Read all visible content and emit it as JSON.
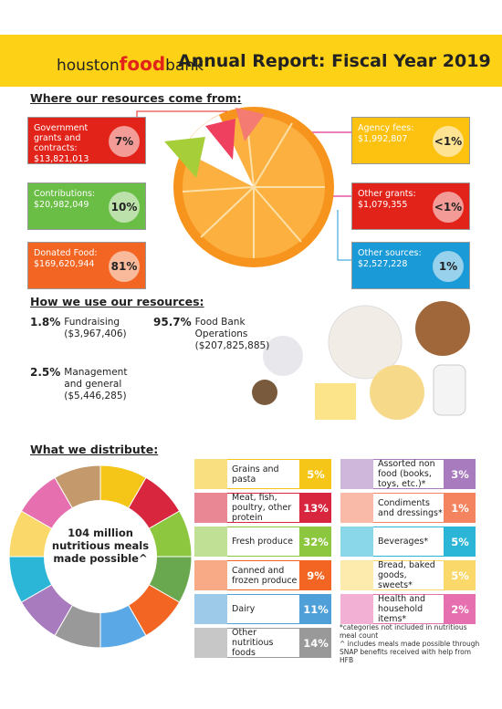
{
  "header": {
    "logo_prefix": "houston",
    "logo_bold": "food",
    "logo_suffix": "bank",
    "title": "Annual Report: Fiscal Year 2019"
  },
  "sources": {
    "heading": "Where our resources come from:",
    "items": [
      {
        "label": "Government grants and contracts:",
        "amount": "$13,821,013",
        "percent": "7%"
      },
      {
        "label": "Contributions:",
        "amount": "$20,982,049",
        "percent": "10%"
      },
      {
        "label": "Donated Food:",
        "amount": "$169,620,944",
        "percent": "81%"
      },
      {
        "label": "Agency fees:",
        "amount": "$1,992,807",
        "percent": "<1%"
      },
      {
        "label": "Other grants:",
        "amount": "$1,079,355",
        "percent": "<1%"
      },
      {
        "label": "Other sources:",
        "amount": "$2,527,228",
        "percent": "1%"
      }
    ]
  },
  "uses": {
    "heading": "How we use our resources:",
    "items": [
      {
        "percent": "1.8%",
        "label": "Fundraising",
        "amount": "($3,967,406)"
      },
      {
        "percent": "95.7%",
        "label": "Food Bank Operations",
        "amount": "($207,825,885)"
      },
      {
        "percent": "2.5%",
        "label": "Management and general",
        "amount": "($5,446,285)"
      }
    ]
  },
  "distribute": {
    "heading": "What we distribute:",
    "center": "104 million nutritious meals made possible^",
    "items": [
      {
        "label": "Grains and pasta",
        "percent": "5%"
      },
      {
        "label": "Meat, fish, poultry, other protein",
        "percent": "13%"
      },
      {
        "label": "Fresh produce",
        "percent": "32%"
      },
      {
        "label": "Canned and frozen produce",
        "percent": "9%"
      },
      {
        "label": "Dairy",
        "percent": "11%"
      },
      {
        "label": "Other nutritious foods",
        "percent": "14%"
      },
      {
        "label": "Assorted non food (books, toys, etc.)*",
        "percent": "3%"
      },
      {
        "label": "Condiments and dressings*",
        "percent": "1%"
      },
      {
        "label": "Beverages*",
        "percent": "5%"
      },
      {
        "label": "Bread, baked goods, sweets*",
        "percent": "5%"
      },
      {
        "label": "Health and household items*",
        "percent": "2%"
      }
    ],
    "notes": [
      "*categories not included in nutritious meal count",
      "^ includes meals made possible through SNAP benefits  received with help from HFB"
    ]
  }
}
